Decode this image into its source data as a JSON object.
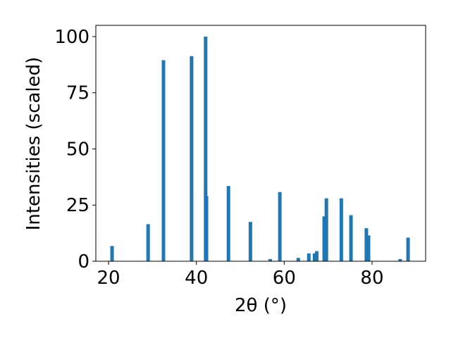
{
  "chart_data": {
    "type": "bar",
    "xlabel": "2θ (°)",
    "ylabel": "Intensities (scaled)",
    "x": [
      20.8,
      29.0,
      32.5,
      38.9,
      42.1,
      42.3,
      47.3,
      52.3,
      56.8,
      59.0,
      63.2,
      65.6,
      66.9,
      67.4,
      69.1,
      69.6,
      73.0,
      75.2,
      78.7,
      79.2,
      86.4,
      88.2
    ],
    "values": [
      6.8,
      16.5,
      89.5,
      91.3,
      100,
      29,
      33.5,
      17.5,
      1,
      30.8,
      1.5,
      3.5,
      3.5,
      4.5,
      20,
      28,
      28,
      20.5,
      14.7,
      11.5,
      1,
      10.5
    ],
    "color": "#1f77b4",
    "xlim": [
      17.1,
      92.2
    ],
    "xticks": [
      20,
      40,
      60,
      80
    ],
    "ylim": [
      0,
      105
    ],
    "yticks": [
      0,
      25,
      50,
      75,
      100
    ]
  }
}
